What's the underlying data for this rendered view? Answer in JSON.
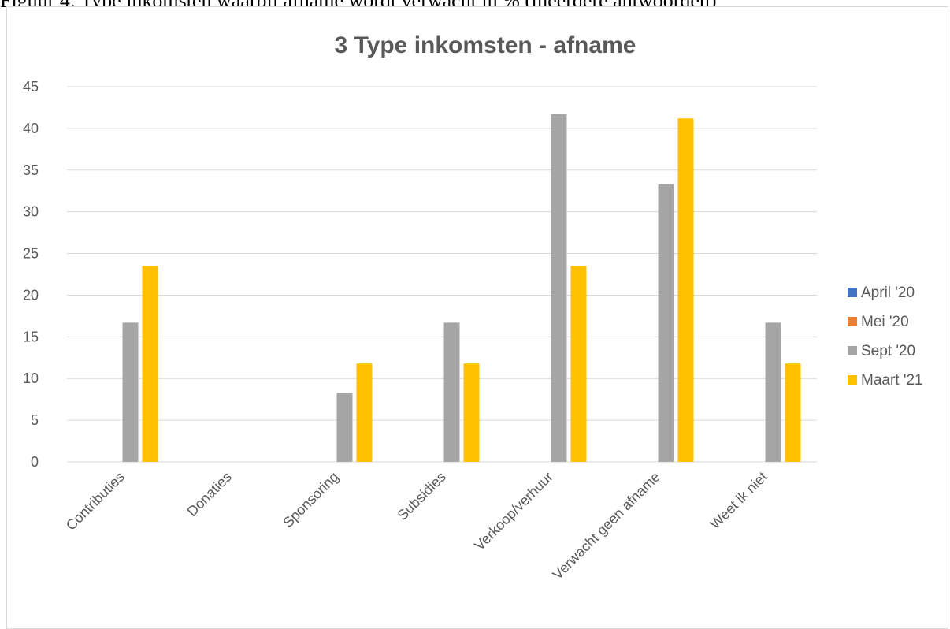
{
  "page": {
    "caption": "Figuur 4: Type inkomsten waarbij afname wordt verwacht in % (meerdere antwoorden)"
  },
  "chart_data": {
    "type": "bar",
    "title": "3 Type inkomsten - afname",
    "xlabel": "",
    "ylabel": "",
    "ylim": [
      0,
      45
    ],
    "yticks": [
      0,
      5,
      10,
      15,
      20,
      25,
      30,
      35,
      40,
      45
    ],
    "grid": true,
    "legend_position": "right",
    "categories": [
      "Contributies",
      "Donaties",
      "Sponsoring",
      "Subsidies",
      "Verkoop/verhuur",
      "Verwacht geen afname",
      "Weet ik niet"
    ],
    "series": [
      {
        "name": "April '20",
        "color": "#4472C4",
        "values": [
          0,
          0,
          0,
          0,
          0,
          0,
          0
        ]
      },
      {
        "name": "Mei '20",
        "color": "#ED7D31",
        "values": [
          0,
          0,
          0,
          0,
          0,
          0,
          0
        ]
      },
      {
        "name": "Sept '20",
        "color": "#A5A5A5",
        "values": [
          16.7,
          0,
          8.3,
          16.7,
          41.7,
          33.3,
          16.7
        ]
      },
      {
        "name": "Maart '21",
        "color": "#FFC000",
        "values": [
          23.5,
          0,
          11.8,
          11.8,
          23.5,
          41.2,
          11.8
        ]
      }
    ]
  }
}
